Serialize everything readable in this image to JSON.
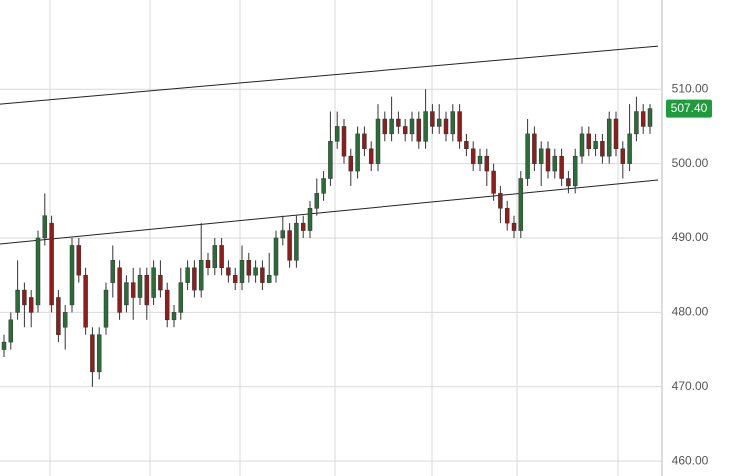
{
  "chart_data": {
    "type": "candlestick",
    "open": [
      475,
      476,
      480,
      483,
      482,
      481,
      490,
      492,
      482,
      478,
      481,
      489,
      485,
      477,
      472,
      478,
      484,
      486,
      481,
      484,
      482,
      485,
      482,
      485,
      483,
      479,
      480,
      484,
      486,
      483,
      487,
      486,
      489,
      486,
      485,
      484,
      487,
      485,
      486,
      484,
      485,
      490,
      491,
      487,
      492,
      491,
      494,
      496,
      498,
      503,
      505,
      501,
      499,
      504,
      502,
      500,
      506,
      504,
      506,
      505,
      504,
      506,
      503,
      507,
      505,
      506,
      504,
      507,
      503,
      502,
      500,
      501,
      499,
      496,
      494,
      492,
      491,
      498,
      504,
      500,
      502,
      499,
      501,
      498,
      497,
      501,
      504,
      502,
      503,
      501,
      506,
      502,
      500,
      504,
      507,
      505
    ],
    "high": [
      477,
      480,
      487,
      484,
      483,
      491,
      496,
      493,
      483,
      481,
      490,
      490,
      486,
      478,
      478,
      484,
      489,
      487,
      485,
      486,
      486,
      486,
      487,
      487,
      484,
      481,
      486,
      487,
      487,
      492,
      488,
      490,
      490,
      487,
      486,
      489,
      488,
      487,
      487,
      488,
      491,
      493,
      492,
      493,
      493,
      495,
      498,
      499,
      507,
      507,
      506,
      502,
      505,
      505,
      503,
      508,
      507,
      509,
      507,
      506,
      507,
      507,
      510,
      508,
      508,
      507,
      508,
      508,
      504,
      503,
      502,
      502,
      500,
      497,
      495,
      493,
      499,
      506,
      505,
      503,
      503,
      502,
      502,
      499,
      502,
      505,
      505,
      504,
      504,
      507,
      507,
      503,
      508,
      509,
      508,
      508
    ],
    "low": [
      474,
      475,
      479,
      478,
      478,
      480,
      489,
      480,
      476,
      475,
      480,
      484,
      477,
      470,
      471,
      477,
      482,
      479,
      480,
      479,
      481,
      479,
      481,
      482,
      478,
      478,
      479,
      483,
      482,
      482,
      485,
      485,
      485,
      484,
      483,
      483,
      484,
      484,
      483,
      484,
      484,
      489,
      486,
      486,
      490,
      490,
      493,
      495,
      497,
      502,
      500,
      497,
      498,
      501,
      499,
      499,
      503,
      503,
      504,
      503,
      503,
      502,
      502,
      504,
      504,
      503,
      503,
      502,
      501,
      499,
      499,
      497,
      495,
      492,
      491,
      490,
      490,
      497,
      499,
      497,
      498,
      498,
      497,
      496,
      496,
      500,
      501,
      501,
      500,
      500,
      501,
      498,
      499,
      503,
      504,
      504
    ],
    "close": [
      476,
      479,
      483,
      481,
      480,
      490,
      493,
      481,
      477,
      480,
      489,
      485,
      478,
      472,
      477,
      483,
      487,
      480,
      484,
      482,
      485,
      481,
      486,
      483,
      479,
      480,
      484,
      486,
      483,
      487,
      486,
      489,
      486,
      485,
      484,
      487,
      485,
      486,
      484,
      485,
      490,
      491,
      487,
      492,
      491,
      494,
      496,
      498,
      503,
      505,
      501,
      499,
      504,
      502,
      500,
      506,
      504,
      506,
      505,
      504,
      506,
      503,
      507,
      505,
      506,
      504,
      507,
      503,
      502,
      500,
      501,
      499,
      496,
      494,
      492,
      491,
      498,
      504,
      500,
      502,
      499,
      501,
      498,
      497,
      501,
      504,
      502,
      503,
      501,
      506,
      502,
      500,
      504,
      507,
      505,
      507.4
    ],
    "up_color": "#2e6b3a",
    "down_color": "#8b1e1e",
    "last_label": "507.40",
    "last_label_color": "#1f9a3c",
    "ylim": [
      458,
      522
    ],
    "yticks": [
      {
        "value": 460,
        "label": "460.00"
      },
      {
        "value": 470,
        "label": "470.00"
      },
      {
        "value": 480,
        "label": "480.00"
      },
      {
        "value": 490,
        "label": "490.00"
      },
      {
        "value": 500,
        "label": "500.00"
      },
      {
        "value": 510,
        "label": "510.00"
      }
    ],
    "grid": true,
    "trendlines": [
      {
        "start": 508,
        "end": 515.8
      },
      {
        "start": 489.2,
        "end": 497.8
      }
    ]
  }
}
